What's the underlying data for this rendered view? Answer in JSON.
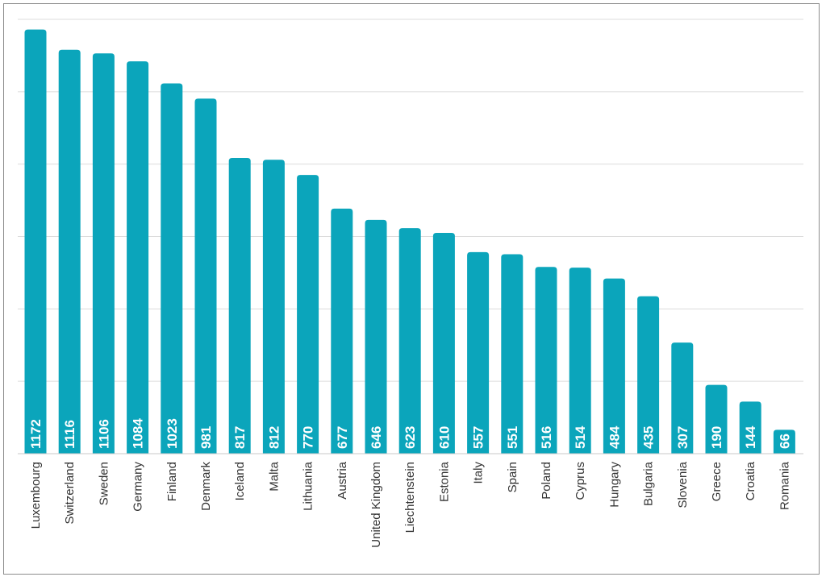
{
  "chart_data": {
    "type": "bar",
    "categories": [
      "Luxembourg",
      "Switzerland",
      "Sweden",
      "Germany",
      "Finland",
      "Denmark",
      "Iceland",
      "Malta",
      "Lithuania",
      "Austria",
      "United Kingdom",
      "Liechtenstein",
      "Estonia",
      "Italy",
      "Spain",
      "Poland",
      "Cyprus",
      "Hungary",
      "Bulgaria",
      "Slovenia",
      "Greece",
      "Croatia",
      "Romania"
    ],
    "values": [
      1172,
      1116,
      1106,
      1084,
      1023,
      981,
      817,
      812,
      770,
      677,
      646,
      623,
      610,
      557,
      551,
      516,
      514,
      484,
      435,
      307,
      190,
      144,
      66
    ],
    "ylim": [
      0,
      1200
    ],
    "grid": true,
    "bar_color": "#0ba5bb",
    "data_labels": true
  }
}
